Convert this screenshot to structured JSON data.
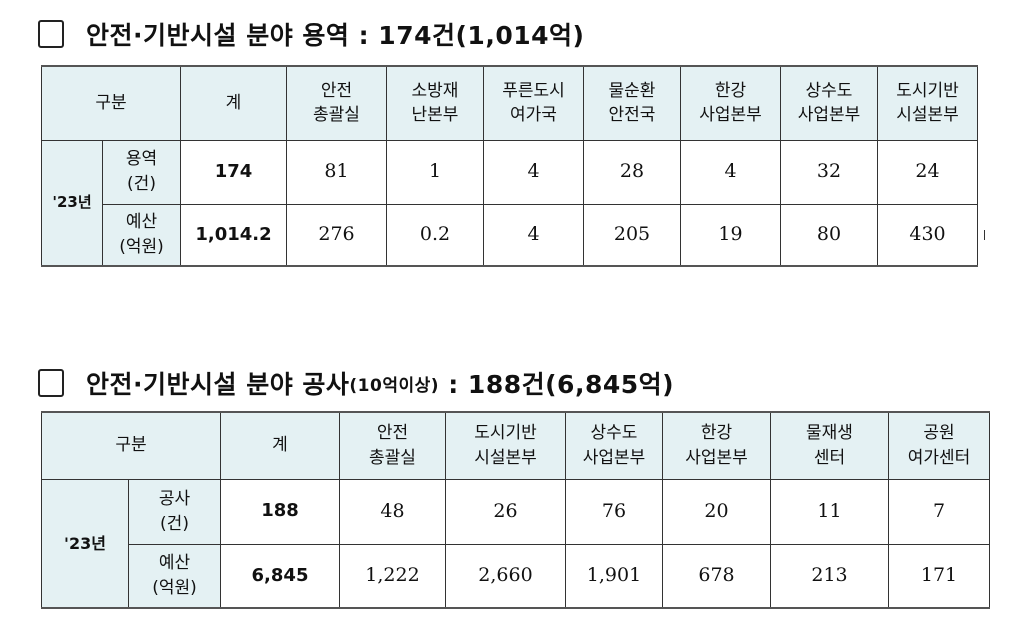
{
  "section1": {
    "title": "안전·기반시설 분야 용역 : 174건(1,014억)",
    "header": {
      "category": "구분",
      "total": "계",
      "departments": [
        "안전\n총괄실",
        "소방재\n난본부",
        "푸른도시\n여가국",
        "물순환\n안전국",
        "한강\n사업본부",
        "상수도\n사업본부",
        "도시기반\n시설본부"
      ]
    },
    "year": "'23년",
    "rows": [
      {
        "label": "용역\n(건)",
        "total": "174",
        "values": [
          "81",
          "1",
          "4",
          "28",
          "4",
          "32",
          "24"
        ]
      },
      {
        "label": "예산\n(억원)",
        "total": "1,014.2",
        "values": [
          "276",
          "0.2",
          "4",
          "205",
          "19",
          "80",
          "430"
        ]
      }
    ]
  },
  "section2": {
    "title_main": "안전·기반시설 분야 공사",
    "title_note": "(10억이상)",
    "title_tail": " : 188건(6,845억)",
    "header": {
      "category": "구분",
      "total": "계",
      "departments": [
        "안전\n총괄실",
        "도시기반\n시설본부",
        "상수도\n사업본부",
        "한강\n사업본부",
        "물재생\n센터",
        "공원\n여가센터"
      ]
    },
    "year": "'23년",
    "rows": [
      {
        "label": "공사\n(건)",
        "total": "188",
        "values": [
          "48",
          "26",
          "76",
          "20",
          "11",
          "7"
        ]
      },
      {
        "label": "예산\n(억원)",
        "total": "6,845",
        "values": [
          "1,222",
          "2,660",
          "1,901",
          "678",
          "213",
          "171"
        ]
      }
    ]
  },
  "colors": {
    "header_bg": "#e4f1f3"
  }
}
